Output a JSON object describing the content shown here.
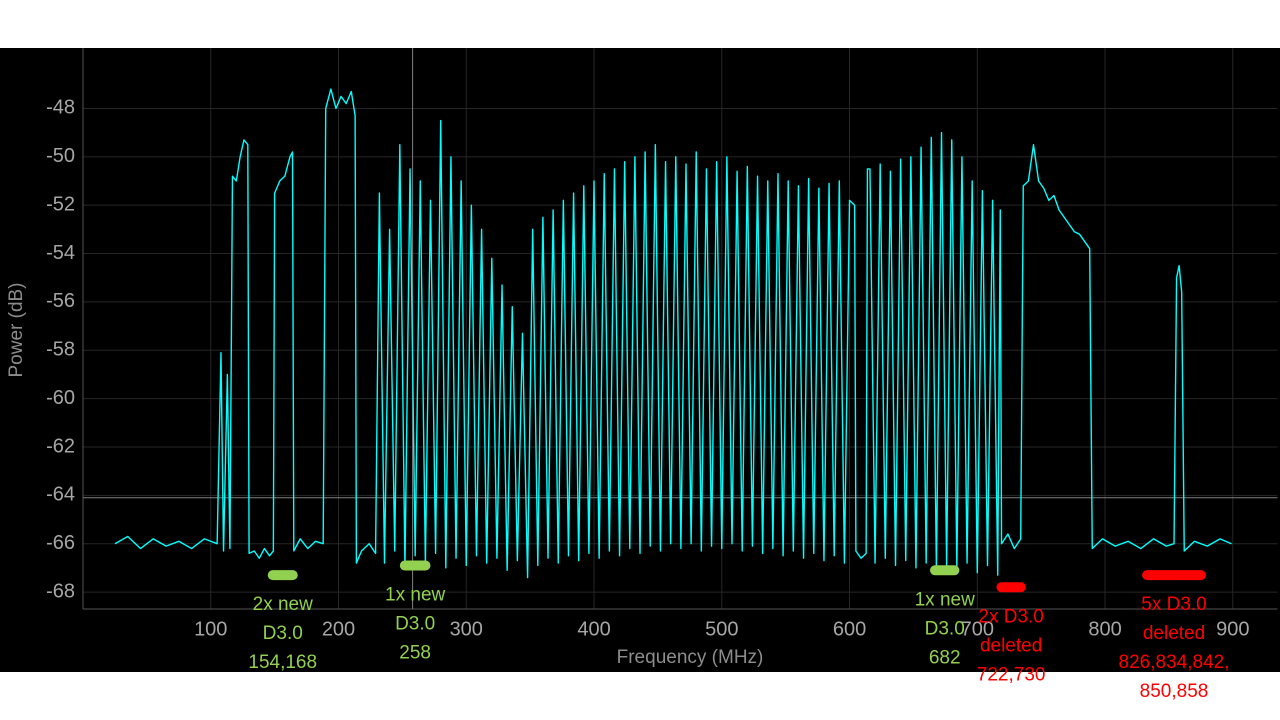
{
  "chart_data": {
    "type": "line",
    "xlabel": "Frequency (MHz)",
    "ylabel": "Power (dB)",
    "xlim": [
      0,
      935
    ],
    "ylim": [
      -68.7,
      -45.5
    ],
    "xticks": [
      100,
      200,
      300,
      400,
      500,
      600,
      700,
      800,
      900
    ],
    "yticks": [
      -68,
      -66,
      -64,
      -62,
      -60,
      -58,
      -56,
      -54,
      -52,
      -50,
      -48
    ],
    "grid": true,
    "reference_lines": {
      "x": 258,
      "y": -64.1
    },
    "series": [
      {
        "color": "#00ffff",
        "x": [
          25,
          35,
          45,
          55,
          65,
          75,
          85,
          95,
          105,
          108,
          110,
          113,
          115,
          117,
          120,
          123,
          126,
          129,
          130,
          134,
          138,
          142,
          146,
          149,
          150,
          154,
          158,
          162,
          164,
          165,
          170,
          176,
          182,
          188,
          190,
          194,
          198,
          202,
          206,
          210,
          213,
          214,
          218,
          224,
          229,
          232,
          236,
          240,
          244,
          248,
          252,
          256,
          260,
          264,
          268,
          272,
          276,
          280,
          284,
          288,
          292,
          296,
          300,
          304,
          308,
          312,
          316,
          320,
          324,
          328,
          332,
          336,
          340,
          344,
          348,
          352,
          356,
          360,
          364,
          368,
          372,
          376,
          380,
          384,
          388,
          392,
          396,
          400,
          404,
          408,
          412,
          416,
          420,
          424,
          428,
          432,
          436,
          440,
          444,
          448,
          452,
          456,
          460,
          464,
          468,
          472,
          476,
          480,
          484,
          488,
          492,
          496,
          500,
          504,
          508,
          512,
          516,
          520,
          524,
          528,
          532,
          536,
          540,
          544,
          548,
          552,
          556,
          560,
          564,
          568,
          572,
          576,
          580,
          584,
          588,
          592,
          596,
          600,
          604,
          605,
          609,
          613,
          614,
          616,
          620,
          624,
          628,
          632,
          636,
          640,
          644,
          648,
          652,
          656,
          660,
          664,
          668,
          672,
          676,
          680,
          684,
          688,
          692,
          696,
          700,
          704,
          708,
          712,
          716,
          718,
          719,
          724,
          729,
          734,
          736,
          740,
          744,
          748,
          752,
          756,
          760,
          764,
          768,
          772,
          776,
          780,
          784,
          788,
          790,
          798,
          808,
          818,
          828,
          838,
          848,
          854,
          856,
          858,
          860,
          862,
          870,
          880,
          890,
          899
        ],
        "values": [
          -66,
          -65.7,
          -66.2,
          -65.8,
          -66.1,
          -65.9,
          -66.2,
          -65.8,
          -66,
          -58.1,
          -66.3,
          -59,
          -66.2,
          -50.8,
          -51,
          -50,
          -49.3,
          -49.5,
          -66.4,
          -66.3,
          -66.6,
          -66.2,
          -66.5,
          -66.3,
          -51.5,
          -51,
          -50.8,
          -50,
          -49.8,
          -66.3,
          -65.8,
          -66.2,
          -65.9,
          -66,
          -48,
          -47.2,
          -48,
          -47.5,
          -47.8,
          -47.3,
          -48.3,
          -66.8,
          -66.3,
          -66,
          -66.4,
          -51.5,
          -66.8,
          -53,
          -66.3,
          -49.5,
          -67,
          -50.5,
          -66.5,
          -51,
          -66.8,
          -51.8,
          -66.4,
          -48.5,
          -67,
          -50,
          -66.6,
          -51,
          -66.9,
          -52,
          -66.5,
          -53,
          -66.8,
          -54.2,
          -66.6,
          -55.3,
          -67.1,
          -56.2,
          -66.7,
          -57.3,
          -67.4,
          -53,
          -66.9,
          -52.5,
          -66.6,
          -52.2,
          -66.8,
          -51.8,
          -66.5,
          -51.5,
          -66.7,
          -51.2,
          -66.4,
          -51,
          -66.6,
          -50.7,
          -66.3,
          -50.5,
          -66.5,
          -50.2,
          -66.2,
          -50,
          -66.4,
          -49.8,
          -66.1,
          -49.5,
          -66.3,
          -50.2,
          -66,
          -50,
          -66.2,
          -50.3,
          -66,
          -49.8,
          -66.3,
          -50.5,
          -66.1,
          -50.2,
          -66.2,
          -50,
          -66,
          -50.6,
          -66.3,
          -50.4,
          -66.1,
          -50.8,
          -66.4,
          -51,
          -66.2,
          -50.7,
          -66.5,
          -51,
          -66.3,
          -51.2,
          -66.6,
          -50.9,
          -66.4,
          -51.3,
          -66.7,
          -51.1,
          -66.5,
          -51,
          -66.8,
          -51.8,
          -52,
          -66.3,
          -66.6,
          -66.4,
          -50.5,
          -50.5,
          -66.8,
          -50.3,
          -66.6,
          -50.6,
          -66.9,
          -50.1,
          -66.7,
          -50,
          -67,
          -49.6,
          -66.8,
          -49.2,
          -67.1,
          -49,
          -66.9,
          -49.3,
          -67,
          -50,
          -66.8,
          -51,
          -67.2,
          -51.4,
          -66.9,
          -51.8,
          -67.3,
          -52.2,
          -66,
          -65.6,
          -66.2,
          -65.8,
          -51.2,
          -51,
          -49.5,
          -51,
          -51.3,
          -51.8,
          -51.6,
          -52.2,
          -52.5,
          -52.8,
          -53.1,
          -53.2,
          -53.5,
          -53.8,
          -66.2,
          -65.8,
          -66.1,
          -65.9,
          -66.2,
          -65.8,
          -66.1,
          -66,
          -55,
          -54.5,
          -55.6,
          -66.3,
          -65.9,
          -66.1,
          -65.8,
          -66
        ]
      }
    ],
    "annotations": [
      {
        "x": [
          144.6,
          168.1
        ],
        "y": -67.3,
        "color": "#92d050",
        "lines": [
          "2x new",
          "D3.0",
          "154,168"
        ]
      },
      {
        "x": [
          248,
          272
        ],
        "y": -66.9,
        "color": "#92d050",
        "lines": [
          "1x new",
          "D3.0",
          "258"
        ]
      },
      {
        "x": [
          663,
          686
        ],
        "y": -67.1,
        "color": "#92d050",
        "lines": [
          "1x new",
          "D3.0",
          "682"
        ]
      },
      {
        "x": [
          715,
          738
        ],
        "y": -67.8,
        "color": "#ff0000",
        "lines": [
          "2x D3.0",
          "deleted",
          "722,730"
        ]
      },
      {
        "x": [
          829,
          879
        ],
        "y": -67.3,
        "color": "#ff0000",
        "lines": [
          "5x D3.0",
          "deleted",
          "826,834,842,",
          "850,858"
        ]
      }
    ]
  }
}
